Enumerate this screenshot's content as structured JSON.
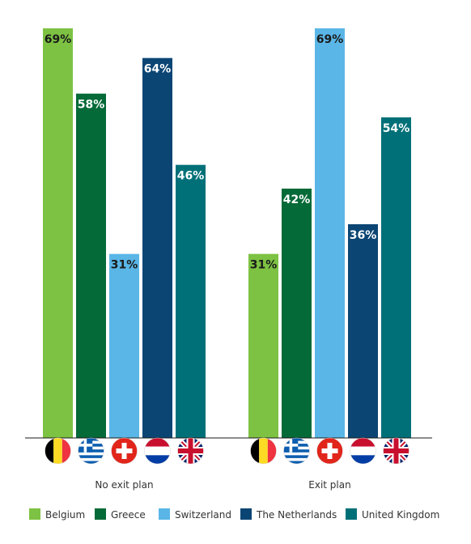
{
  "chart_data": {
    "type": "bar",
    "categories": [
      "No exit plan",
      "Exit plan"
    ],
    "ylim": [
      0,
      69
    ],
    "series": [
      {
        "name": "Belgium",
        "values": [
          69,
          31
        ],
        "color": "#7dc243",
        "label_color": "#1a1a1a",
        "flag": "belgium-flag-icon"
      },
      {
        "name": "Greece",
        "values": [
          58,
          42
        ],
        "color": "#046a38",
        "label_color": "#ffffff",
        "flag": "greece-flag-icon"
      },
      {
        "name": "Switzerland",
        "values": [
          31,
          69
        ],
        "color": "#5ab6e6",
        "label_color": "#1a1a1a",
        "flag": "switzerland-flag-icon"
      },
      {
        "name": "The Netherlands",
        "values": [
          64,
          36
        ],
        "color": "#0b4574",
        "label_color": "#ffffff",
        "flag": "netherlands-flag-icon"
      },
      {
        "name": "United Kingdom",
        "values": [
          46,
          54
        ],
        "color": "#007078",
        "label_color": "#ffffff",
        "flag": "uk-flag-icon"
      }
    ],
    "data_labels": [
      [
        "69%",
        "58%",
        "31%",
        "64%",
        "46%"
      ],
      [
        "31%",
        "42%",
        "69%",
        "36%",
        "54%"
      ]
    ],
    "legend_position": "bottom",
    "grid": false
  }
}
